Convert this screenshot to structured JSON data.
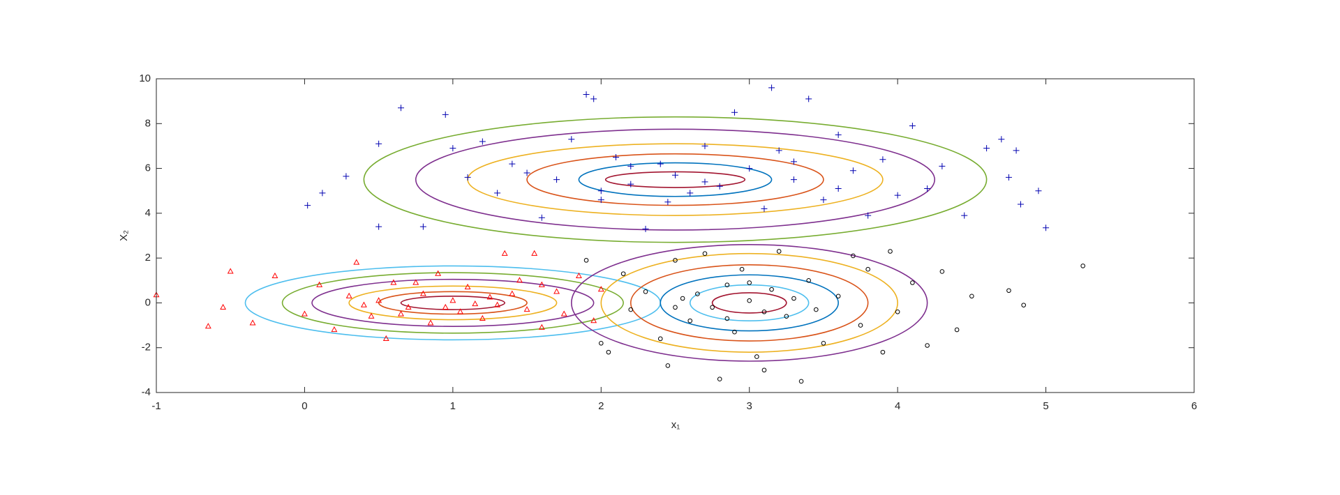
{
  "chart_data": {
    "type": "scatter",
    "xlabel": "x₁",
    "ylabel": "X₂",
    "xlim": [
      -1,
      6
    ],
    "ylim": [
      -4,
      10
    ],
    "xticks": [
      -1,
      0,
      1,
      2,
      3,
      4,
      5,
      6
    ],
    "yticks": [
      -4,
      -2,
      0,
      2,
      4,
      6,
      8,
      10
    ],
    "box": true,
    "series": [
      {
        "color": "#0000b0",
        "marker": "plus",
        "x": [
          0.02,
          0.12,
          0.28,
          0.5,
          0.5,
          0.65,
          0.95,
          0.8,
          1.0,
          1.2,
          1.3,
          1.4,
          1.6,
          1.7,
          1.8,
          1.9,
          1.95,
          2.0,
          2.1,
          2.2,
          2.3,
          2.4,
          2.5,
          2.6,
          2.7,
          2.8,
          2.9,
          3.0,
          3.1,
          3.15,
          3.2,
          3.3,
          3.4,
          3.5,
          3.6,
          3.7,
          3.8,
          3.9,
          4.0,
          4.1,
          4.2,
          4.3,
          4.45,
          4.6,
          4.7,
          4.75,
          4.8,
          4.83,
          4.95,
          5.0,
          1.5,
          2.2,
          2.7,
          3.3,
          2.0,
          1.1,
          3.6,
          2.45
        ],
        "y": [
          4.35,
          4.9,
          5.65,
          3.4,
          7.1,
          8.7,
          8.4,
          3.4,
          6.9,
          7.2,
          4.9,
          6.2,
          3.8,
          5.5,
          7.3,
          9.3,
          9.1,
          4.6,
          6.5,
          5.3,
          3.3,
          6.2,
          5.7,
          4.9,
          7.0,
          5.2,
          8.5,
          6.0,
          4.2,
          9.6,
          6.8,
          5.5,
          9.1,
          4.6,
          7.5,
          5.9,
          3.9,
          6.4,
          4.8,
          7.9,
          5.1,
          6.1,
          3.9,
          6.9,
          7.3,
          5.6,
          6.8,
          4.4,
          5.0,
          3.35,
          5.8,
          6.1,
          5.4,
          6.3,
          5.0,
          5.6,
          5.1,
          4.5
        ]
      },
      {
        "color": "#ff0000",
        "marker": "triangle",
        "x": [
          -1.0,
          -0.65,
          -0.5,
          -0.55,
          -0.35,
          -0.2,
          0.0,
          0.1,
          0.2,
          0.3,
          0.35,
          0.45,
          0.55,
          0.6,
          0.7,
          0.8,
          0.85,
          0.9,
          1.0,
          1.05,
          1.1,
          1.2,
          1.25,
          1.3,
          1.35,
          1.45,
          1.5,
          1.55,
          1.6,
          1.7,
          1.75,
          1.85,
          1.95,
          2.0,
          0.5,
          0.75,
          1.15,
          0.95,
          1.4,
          0.65,
          1.6,
          0.4
        ],
        "y": [
          0.35,
          -1.05,
          1.4,
          -0.2,
          -0.9,
          1.2,
          -0.5,
          0.8,
          -1.2,
          0.3,
          1.8,
          -0.6,
          -1.6,
          0.9,
          -0.2,
          0.4,
          -0.9,
          1.3,
          0.1,
          -0.4,
          0.7,
          -0.7,
          0.25,
          -0.1,
          2.2,
          1.0,
          -0.3,
          2.2,
          -1.1,
          0.5,
          -0.5,
          1.2,
          -0.8,
          0.6,
          0.1,
          0.9,
          -0.05,
          -0.2,
          0.4,
          -0.5,
          0.8,
          -0.1
        ]
      },
      {
        "color": "#000000",
        "marker": "circle",
        "x": [
          1.9,
          2.0,
          2.05,
          2.15,
          2.2,
          2.3,
          2.4,
          2.45,
          2.5,
          2.55,
          2.6,
          2.7,
          2.75,
          2.8,
          2.85,
          2.9,
          2.95,
          3.0,
          3.05,
          3.1,
          3.15,
          3.2,
          3.25,
          3.35,
          3.4,
          3.5,
          3.6,
          3.7,
          3.75,
          3.8,
          3.9,
          3.95,
          4.0,
          4.1,
          4.2,
          4.3,
          4.4,
          4.5,
          4.75,
          4.85,
          5.25,
          2.65,
          3.1,
          2.85,
          3.3,
          2.5,
          3.45,
          3.0
        ],
        "y": [
          1.9,
          -1.8,
          -2.2,
          1.3,
          -0.3,
          0.5,
          -1.6,
          -2.8,
          1.9,
          0.2,
          -0.8,
          2.2,
          -0.2,
          -3.4,
          0.8,
          -1.3,
          1.5,
          0.1,
          -2.4,
          -3.0,
          0.6,
          2.3,
          -0.6,
          -3.5,
          1.0,
          -1.8,
          0.3,
          2.1,
          -1.0,
          1.5,
          -2.2,
          2.3,
          -0.4,
          0.9,
          -1.9,
          1.4,
          -1.2,
          0.3,
          0.55,
          -0.1,
          1.65,
          0.4,
          -0.4,
          -0.7,
          0.2,
          -0.2,
          -0.3,
          0.9
        ]
      }
    ],
    "contours": [
      {
        "color": "#77AC30",
        "cx": 2.5,
        "cy": 5.5,
        "rx": 2.1,
        "ry": 2.8
      },
      {
        "color": "#7E2F8E",
        "cx": 2.5,
        "cy": 5.5,
        "rx": 1.75,
        "ry": 2.25
      },
      {
        "color": "#EDB120",
        "cx": 2.5,
        "cy": 5.5,
        "rx": 1.4,
        "ry": 1.6
      },
      {
        "color": "#D95319",
        "cx": 2.5,
        "cy": 5.5,
        "rx": 1.0,
        "ry": 1.15
      },
      {
        "color": "#0072BD",
        "cx": 2.5,
        "cy": 5.5,
        "rx": 0.65,
        "ry": 0.75
      },
      {
        "color": "#A2142F",
        "cx": 2.5,
        "cy": 5.5,
        "rx": 0.47,
        "ry": 0.35
      },
      {
        "color": "#4DBEEE",
        "cx": 1.0,
        "cy": 0.0,
        "rx": 1.4,
        "ry": 1.65
      },
      {
        "color": "#77AC30",
        "cx": 1.0,
        "cy": 0.0,
        "rx": 1.15,
        "ry": 1.35
      },
      {
        "color": "#7E2F8E",
        "cx": 1.0,
        "cy": 0.0,
        "rx": 0.95,
        "ry": 1.05
      },
      {
        "color": "#EDB120",
        "cx": 1.0,
        "cy": 0.0,
        "rx": 0.7,
        "ry": 0.75
      },
      {
        "color": "#D95319",
        "cx": 1.0,
        "cy": 0.0,
        "rx": 0.5,
        "ry": 0.5
      },
      {
        "color": "#A2142F",
        "cx": 1.0,
        "cy": 0.0,
        "rx": 0.35,
        "ry": 0.3
      },
      {
        "color": "#7E2F8E",
        "cx": 3.0,
        "cy": 0.0,
        "rx": 1.2,
        "ry": 2.6
      },
      {
        "color": "#EDB120",
        "cx": 3.0,
        "cy": 0.0,
        "rx": 1.0,
        "ry": 2.2
      },
      {
        "color": "#D95319",
        "cx": 3.0,
        "cy": 0.0,
        "rx": 0.8,
        "ry": 1.7
      },
      {
        "color": "#0072BD",
        "cx": 3.0,
        "cy": 0.0,
        "rx": 0.6,
        "ry": 1.25
      },
      {
        "color": "#4DBEEE",
        "cx": 3.0,
        "cy": 0.0,
        "rx": 0.4,
        "ry": 0.8
      },
      {
        "color": "#A2142F",
        "cx": 3.0,
        "cy": 0.0,
        "rx": 0.25,
        "ry": 0.45
      }
    ]
  }
}
